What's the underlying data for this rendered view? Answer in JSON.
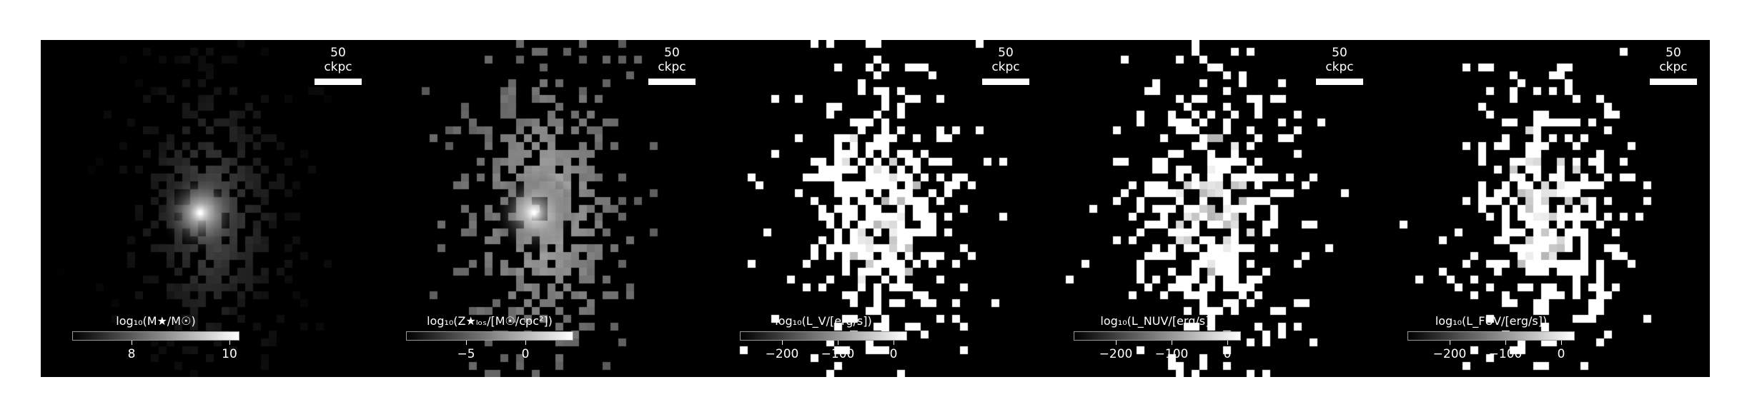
{
  "panels": [
    {
      "id": "stellar-mass",
      "scale_label": "50 ckpc",
      "colorbar_label": "log₁₀(M★/M☉)",
      "colorbar_ticks": [
        "8",
        "10"
      ],
      "colorbar_tick_values": [
        8,
        10
      ],
      "colorbar_range": [
        6.8,
        10.2
      ],
      "style": "smooth"
    },
    {
      "id": "metal-surface-density",
      "scale_label": "50 ckpc",
      "colorbar_label": "log₁₀(Z★ₗₒₛ/[M☉/cpc²])",
      "colorbar_ticks": [
        "−5",
        "0"
      ],
      "colorbar_tick_values": [
        -5,
        0
      ],
      "colorbar_range": [
        -10,
        4
      ],
      "style": "metal"
    },
    {
      "id": "v-band-luminosity",
      "scale_label": "50 ckpc",
      "colorbar_label": "log₁₀(L_V/[erg/s])",
      "colorbar_ticks": [
        "−200",
        "−100",
        "0"
      ],
      "colorbar_tick_values": [
        -200,
        -100,
        0
      ],
      "colorbar_range": [
        -275,
        25
      ],
      "style": "binary"
    },
    {
      "id": "nuv-luminosity",
      "scale_label": "50 ckpc",
      "colorbar_label": "log₁₀(L_NUV/[erg/s])",
      "colorbar_ticks": [
        "−200",
        "−100",
        "0"
      ],
      "colorbar_tick_values": [
        -200,
        -100,
        0
      ],
      "colorbar_range": [
        -275,
        25
      ],
      "style": "binary"
    },
    {
      "id": "fuv-luminosity",
      "scale_label": "50 ckpc",
      "colorbar_label": "log₁₀(L_FUV/[erg/s])",
      "colorbar_ticks": [
        "−200",
        "−100",
        "0"
      ],
      "colorbar_tick_values": [
        -200,
        -100,
        0
      ],
      "colorbar_range": [
        -275,
        25
      ],
      "style": "binary"
    }
  ],
  "colors": {
    "background": "#000000",
    "foreground": "#ffffff",
    "page": "#ffffff"
  }
}
